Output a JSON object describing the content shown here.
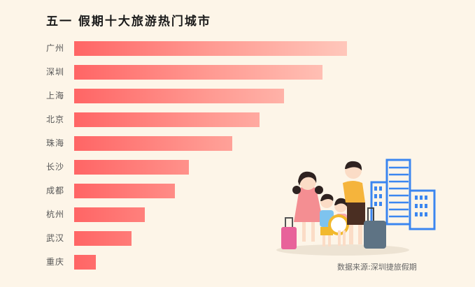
{
  "title": "五一 假期十大旅游热门城市",
  "source": "数据来源:深圳捷旅假期",
  "colors": {
    "background": "#FDF5E8",
    "bar_gradient_start": "#FF6565",
    "bar_gradient_end": "#FFC7BB",
    "building_blue": "#3B86F0"
  },
  "rows": [
    {
      "label": "广州",
      "value": 100
    },
    {
      "label": "深圳",
      "value": 91
    },
    {
      "label": "上海",
      "value": 77
    },
    {
      "label": "北京",
      "value": 68
    },
    {
      "label": "珠海",
      "value": 58
    },
    {
      "label": "长沙",
      "value": 42
    },
    {
      "label": "成都",
      "value": 37
    },
    {
      "label": "杭州",
      "value": 26
    },
    {
      "label": "武汉",
      "value": 21
    },
    {
      "label": "重庆",
      "value": 8
    }
  ],
  "chart_data": {
    "type": "bar",
    "orientation": "horizontal",
    "title": "五一 假期十大旅游热门城市",
    "categories": [
      "广州",
      "深圳",
      "上海",
      "北京",
      "珠海",
      "长沙",
      "成都",
      "杭州",
      "武汉",
      "重庆"
    ],
    "values": [
      100,
      91,
      77,
      68,
      58,
      42,
      37,
      26,
      21,
      8
    ],
    "xlabel": "",
    "ylabel": "",
    "value_note": "No axis or data labels shown; values are relative bar lengths normalized to 广州 = 100",
    "grid": false,
    "legend": null,
    "annotations": [
      "数据来源:深圳捷旅假期"
    ]
  },
  "illustration": {
    "description": "family of four with suitcases in front of blue outline buildings"
  }
}
